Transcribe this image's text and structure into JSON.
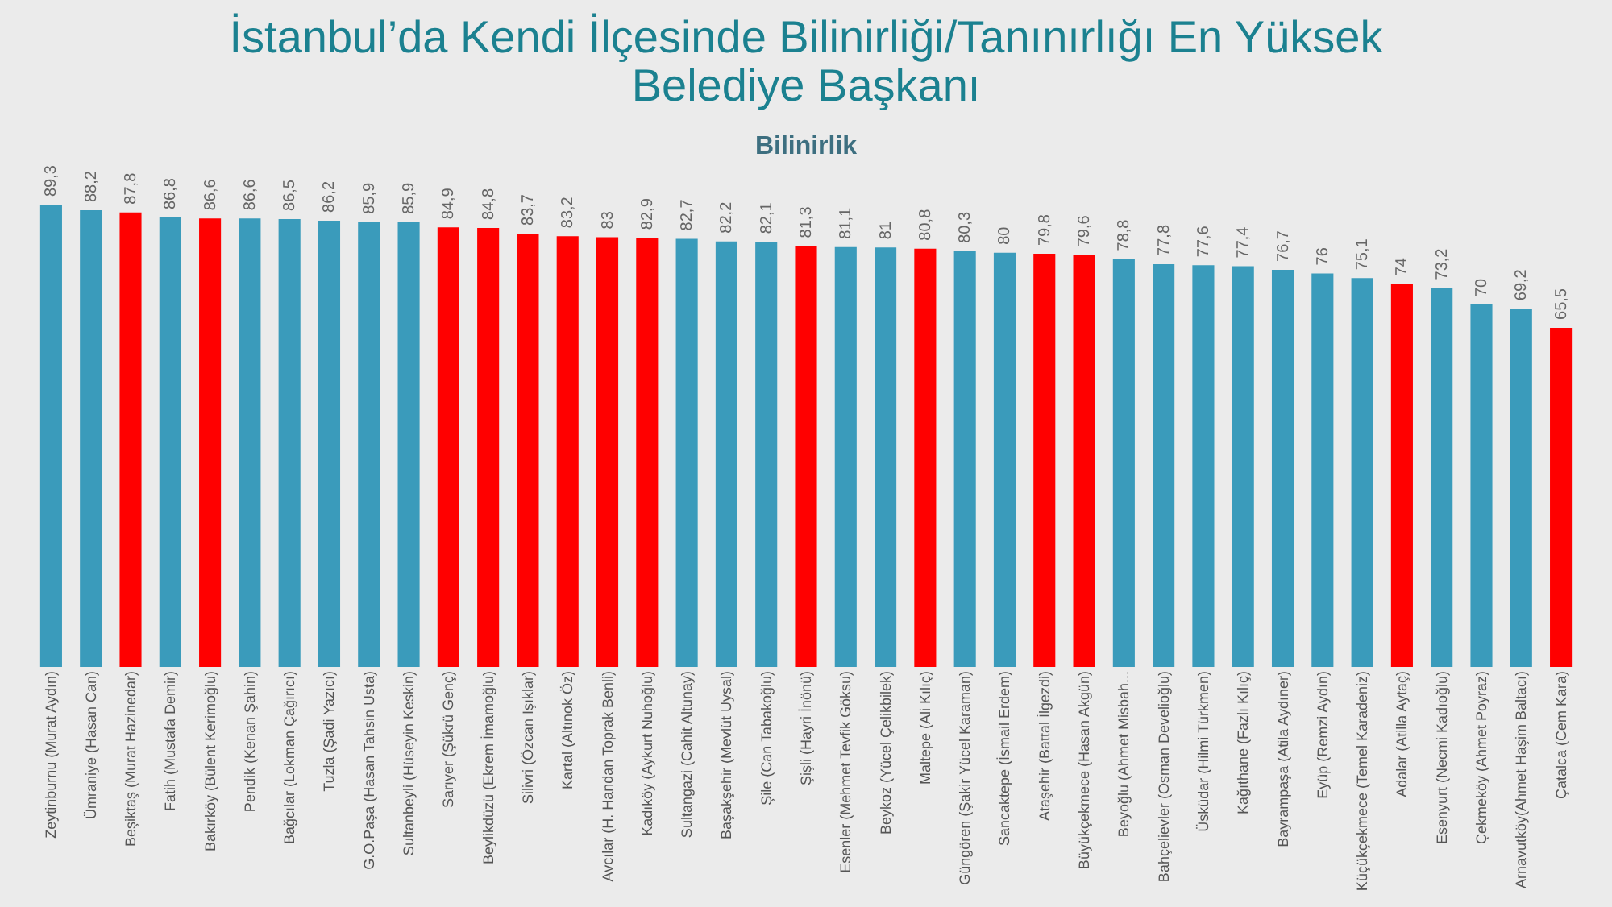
{
  "chart_data": {
    "type": "bar",
    "title": "İstanbul’da Kendi İlçesinde Bilinirliği/Tanınırlığı En Yüksek Belediye Başkanı",
    "subtitle": "Bilinirlik",
    "categories": [
      "Zeytinburnu (Murat Aydın)",
      "Ümraniye (Hasan Can)",
      "Beşiktaş (Murat Hazinedar)",
      "Fatih (Mustafa Demir)",
      "Bakırköy (Bülent Kerimoğlu)",
      "Pendik (Kenan Şahin)",
      "Bağcılar (Lokman Çağırıcı)",
      "Tuzla (Şadi Yazıcı)",
      "G.O.Paşa (Hasan Tahsin Usta)",
      "Sultanbeyli (Hüseyin Keskin)",
      "Sarıyer (Şükrü Genç)",
      "Beylikdüzü (Ekrem İmamoğlu)",
      "Silivri (Özcan Işıklar)",
      "Kartal (Altınok Öz)",
      "Avcılar (H. Handan Toprak Benli)",
      "Kadıköy (Aykurt Nuhoğlu)",
      "Sultangazi (Cahit Altunay)",
      "Başakşehir (Mevlüt Uysal)",
      "Şile (Can Tabakoğlu)",
      "Şişli (Hayri İnönü)",
      "Esenler (Mehmet Tevfik Göksu)",
      "Beykoz (Yücel Çelikbilek)",
      "Maltepe (Ali Kılıç)",
      "Güngören (Şakir Yücel Karaman)",
      "Sancaktepe (İsmail Erdem)",
      "Ataşehir (Battal İlgezdi)",
      "Büyükçekmece (Hasan Akgün)",
      "Beyoğlu (Ahmet Misbah...",
      "Bahçelievler (Osman Develioğlu)",
      "Üsküdar (Hilmi Türkmen)",
      "Kağıthane (Fazlı Kılıç)",
      "Bayrampaşa (Atila Aydıner)",
      "Eyüp (Remzi Aydın)",
      "Küçükçekmece (Temel Karadeniz)",
      "Adalar (Atilla Aytaç)",
      "Esenyurt (Necmi Kadıoğlu)",
      "Çekmeköy (Ahmet Poyraz)",
      "Arnavutköy(Ahmet Haşim Baltacı)",
      "Çatalca (Cem Kara)"
    ],
    "values": [
      89.3,
      88.2,
      87.8,
      86.8,
      86.6,
      86.6,
      86.5,
      86.2,
      85.9,
      85.9,
      84.9,
      84.8,
      83.7,
      83.2,
      83,
      82.9,
      82.7,
      82.2,
      82.1,
      81.3,
      81.1,
      81,
      80.8,
      80.3,
      80,
      79.8,
      79.6,
      78.8,
      77.8,
      77.6,
      77.4,
      76.7,
      76,
      75.1,
      74,
      73.2,
      70,
      69.2,
      65.5
    ],
    "value_labels": [
      "89,3",
      "88,2",
      "87,8",
      "86,8",
      "86,6",
      "86,6",
      "86,5",
      "86,2",
      "85,9",
      "85,9",
      "84,9",
      "84,8",
      "83,7",
      "83,2",
      "83",
      "82,9",
      "82,7",
      "82,2",
      "82,1",
      "81,3",
      "81,1",
      "81",
      "80,8",
      "80,3",
      "80",
      "79,8",
      "79,6",
      "78,8",
      "77,8",
      "77,6",
      "77,4",
      "76,7",
      "76",
      "75,1",
      "74",
      "73,2",
      "70",
      "69,2",
      "65,5"
    ],
    "colors": [
      "#3a9bbb",
      "#3a9bbb",
      "#ff0000",
      "#3a9bbb",
      "#ff0000",
      "#3a9bbb",
      "#3a9bbb",
      "#3a9bbb",
      "#3a9bbb",
      "#3a9bbb",
      "#ff0000",
      "#ff0000",
      "#ff0000",
      "#ff0000",
      "#ff0000",
      "#ff0000",
      "#3a9bbb",
      "#3a9bbb",
      "#3a9bbb",
      "#ff0000",
      "#3a9bbb",
      "#3a9bbb",
      "#ff0000",
      "#3a9bbb",
      "#3a9bbb",
      "#ff0000",
      "#ff0000",
      "#3a9bbb",
      "#3a9bbb",
      "#3a9bbb",
      "#3a9bbb",
      "#3a9bbb",
      "#3a9bbb",
      "#3a9bbb",
      "#ff0000",
      "#3a9bbb",
      "#3a9bbb",
      "#3a9bbb",
      "#ff0000"
    ],
    "grid": false
  }
}
